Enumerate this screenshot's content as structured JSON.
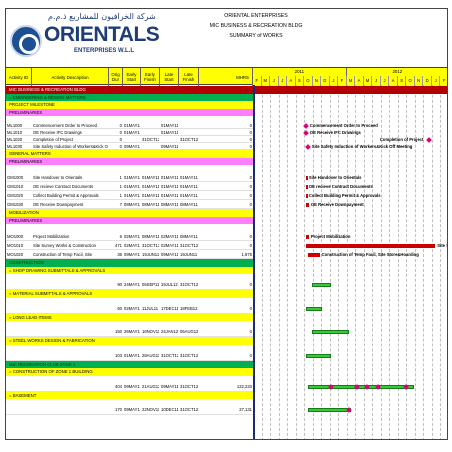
{
  "logo": {
    "arabic": "شركة الخرافيون للمشاريع ذ.م.م",
    "name": "ORIENTALS",
    "sub": "ENTERPRISES W.L.L"
  },
  "titles": [
    "ORIENTAL ENTERPRISES",
    "MIC BUSINESS & RECREATION BLDG",
    "SUMMARY of WORKS"
  ],
  "columns": [
    "Activity ID",
    "Activity Description",
    "Orig Dur",
    "Early Start",
    "Early Finish",
    "Late Start",
    "Late Finish",
    "MHRS"
  ],
  "years": [
    "2011",
    "2012"
  ],
  "months": [
    "F",
    "M",
    "J",
    "J",
    "A",
    "S",
    "O",
    "N",
    "D",
    "J",
    "F",
    "M",
    "A",
    "M",
    "J",
    "J",
    "A",
    "S",
    "O",
    "N",
    "D",
    "J",
    "F"
  ],
  "colors": {
    "project_band": "#b30000",
    "group_green": "#00b050",
    "group_yellow": "#ffff00",
    "group_orange": "#ff9900",
    "sub_pink": "#ff7dff",
    "bar_red": "#cc0000",
    "bar_green": "#33cc33",
    "milestone": "#e0007b"
  },
  "rows": [
    {
      "type": "band",
      "cls": "project",
      "text": "MIC BUSINESS & RECREATION BLDG"
    },
    {
      "type": "band",
      "cls": "green",
      "text": "= ENGINEERING & DESIGN MATTERS"
    },
    {
      "type": "band",
      "cls": "yellow",
      "text": "PROJECT MILESTONE"
    },
    {
      "type": "band",
      "cls": "pink",
      "text": "PRELIMINARIES"
    },
    {
      "type": "blank"
    },
    {
      "type": "act",
      "id": "ML1000",
      "desc": "Commencement Order to Proceed",
      "dur": "0",
      "es": "01MAY11",
      "ef": "",
      "ls": "01MAY11",
      "lf": "",
      "mh": "0",
      "gl": "Commencement Order to Proceed",
      "ms": 0.27
    },
    {
      "type": "act",
      "id": "ML1010",
      "desc": "OE Receive IFC Drawings",
      "dur": "0",
      "es": "01MAY11",
      "ef": "",
      "ls": "01MAY11",
      "lf": "",
      "mh": "0",
      "gl": "OE Receive IFC Drawings",
      "ms": 0.27
    },
    {
      "type": "act",
      "id": "ML1020",
      "desc": "Completion of Project",
      "dur": "0",
      "es": "",
      "ef": "31OCT12",
      "ls": "",
      "lf": "31OCT12",
      "mh": "0",
      "gl": "Completion of Project",
      "ms": 0.9,
      "glRight": true
    },
    {
      "type": "act",
      "id": "ML1030",
      "desc": "Site Safety Induction of Workers&Kick Off",
      "dur": "0",
      "es": "09MAY11",
      "ef": "",
      "ls": "09MAY11",
      "lf": "",
      "mh": "0",
      "gl": "Site Safety Induction of Workers&Kick Off Meeting",
      "ms": 0.28
    },
    {
      "type": "band",
      "cls": "yellow",
      "text": "GENERAL MATTERS"
    },
    {
      "type": "band",
      "cls": "pink",
      "text": "PRELIMINARIES"
    },
    {
      "type": "blank"
    },
    {
      "type": "act",
      "id": "GM1000",
      "desc": "Site Handover to Orientals",
      "dur": "1",
      "es": "01MAY11",
      "ef": "01MAY11",
      "ls": "01MAY11",
      "lf": "01MAY11",
      "mh": "0",
      "gl": "Site Handover to Orientals",
      "bar": [
        0.27,
        0.275
      ],
      "bc": "red"
    },
    {
      "type": "act",
      "id": "GM1010",
      "desc": "OE recieve Contract Documents",
      "dur": "1",
      "es": "01MAY11",
      "ef": "01MAY11",
      "ls": "01MAY11",
      "lf": "01MAY11",
      "mh": "0",
      "gl": "OE recieve Contract Documents",
      "bar": [
        0.27,
        0.275
      ],
      "bc": "red"
    },
    {
      "type": "act",
      "id": "GM1020",
      "desc": "Collect Building Permit & Approvals",
      "dur": "1",
      "es": "01MAY11",
      "ef": "01MAY11",
      "ls": "01MAY11",
      "lf": "01MAY11",
      "mh": "0",
      "gl": "Collect Building Permit & Approvals",
      "bar": [
        0.27,
        0.275
      ],
      "bc": "red"
    },
    {
      "type": "act",
      "id": "GM1030",
      "desc": "OE Receive Downpayment",
      "dur": "7",
      "es": "08MAY11",
      "ef": "08MAY11",
      "ls": "08MAY11",
      "lf": "08MAY11",
      "mh": "0",
      "gl": "OE Receive Downpayment",
      "bar": [
        0.27,
        0.285
      ],
      "bc": "red"
    },
    {
      "type": "band",
      "cls": "yellow",
      "text": "MOBILIZATION"
    },
    {
      "type": "band",
      "cls": "pink",
      "text": "PRELIMINARIES"
    },
    {
      "type": "blank"
    },
    {
      "type": "act",
      "id": "MO1000",
      "desc": "Project Mobilization",
      "dur": "6",
      "es": "02MAY11",
      "ef": "08MAY11",
      "ls": "02MAY11",
      "lf": "08MAY11",
      "mh": "0",
      "gl": "Project Mobilization",
      "bar": [
        0.27,
        0.285
      ],
      "bc": "red"
    },
    {
      "type": "act",
      "id": "MO1010",
      "desc": "Site Survey Works & Construction",
      "dur": "471",
      "es": "02MAY11",
      "ef": "31OCT12",
      "ls": "02MAY11",
      "lf": "31OCT12",
      "mh": "0",
      "gl": "Site Survey",
      "bar": [
        0.27,
        0.93
      ],
      "bc": "red",
      "glRight": true
    },
    {
      "type": "act",
      "id": "MO1020",
      "desc": "Construction of Temp Facil, Site",
      "dur": "36",
      "es": "09MAY11",
      "ef": "19JUN11",
      "ls": "09MAY11",
      "lf": "19JUN11",
      "mh": "1,875",
      "gl": "Construction of Temp Facil, Site Store&Hoarding",
      "bar": [
        0.28,
        0.34
      ],
      "bc": "red"
    },
    {
      "type": "band",
      "cls": "green",
      "text": "CONSTRUCTION"
    },
    {
      "type": "band",
      "cls": "yellow",
      "text": "= SHOP DRAWING SUBMITTALS & APPROVALS"
    },
    {
      "type": "blank"
    },
    {
      "type": "act",
      "id": "",
      "desc": "",
      "dur": "90",
      "es": "24MAY11",
      "ef": "05SEP11",
      "ls": "19JUL12",
      "lf": "31OCT12",
      "mh": "0",
      "bar": [
        0.3,
        0.4
      ],
      "bc": "green"
    },
    {
      "type": "band",
      "cls": "yellow",
      "text": "= MATERIAL SUBMITTALS & APPROVALS"
    },
    {
      "type": "blank"
    },
    {
      "type": "act",
      "id": "",
      "desc": "",
      "dur": "60",
      "es": "02MAY11",
      "ef": "11JUL11",
      "ls": "17DEC11",
      "lf": "18FEB12",
      "mh": "0",
      "bar": [
        0.27,
        0.35
      ],
      "bc": "green"
    },
    {
      "type": "band",
      "cls": "yellow",
      "text": "= LONG LEAD ITEMS"
    },
    {
      "type": "blank"
    },
    {
      "type": "act",
      "id": "",
      "desc": "",
      "dur": "150",
      "es": "26MAY11",
      "ef": "16NOV11",
      "ls": "24JAN12",
      "lf": "05AUG12",
      "mh": "0",
      "bar": [
        0.3,
        0.49
      ],
      "bc": "green"
    },
    {
      "type": "band",
      "cls": "yellow",
      "text": "= STEEL WORKS DESIGN & FABRICATION"
    },
    {
      "type": "blank"
    },
    {
      "type": "act",
      "id": "",
      "desc": "",
      "dur": "103",
      "es": "01MAY11",
      "ef": "28AUG11",
      "ls": "31OCT12",
      "lf": "31OCT12",
      "mh": "0",
      "bar": [
        0.27,
        0.4
      ],
      "bc": "green"
    },
    {
      "type": "band",
      "cls": "green",
      "text": "MIC RECREATION CLUB ZONE 1"
    },
    {
      "type": "band",
      "cls": "yellow",
      "text": "= CONSTRUCTION OF ZONE 1 BUILDING"
    },
    {
      "type": "blank"
    },
    {
      "type": "act",
      "id": "",
      "desc": "",
      "dur": "404",
      "es": "09MAY11",
      "ef": "21AUG12",
      "ls": "09MAY11",
      "lf": "31OCT12",
      "mh": "122,233",
      "bar": [
        0.28,
        0.82
      ],
      "bc": "green",
      "mss": [
        0.4,
        0.53,
        0.58,
        0.64,
        0.78
      ]
    },
    {
      "type": "band",
      "cls": "yellow",
      "text": "= BASEMENT"
    },
    {
      "type": "blank"
    },
    {
      "type": "act",
      "id": "",
      "desc": "",
      "dur": "170",
      "es": "09MAY11",
      "ef": "22NOV11",
      "ls": "10DEC11",
      "lf": "31OCT12",
      "mh": "27,131",
      "bar": [
        0.28,
        0.5
      ],
      "bc": "green",
      "mss": [
        0.49
      ]
    }
  ]
}
